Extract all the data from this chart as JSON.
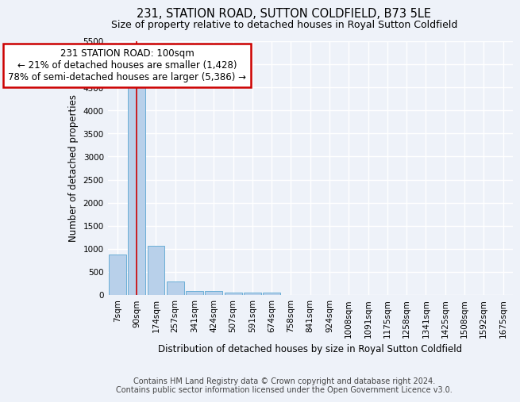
{
  "title": "231, STATION ROAD, SUTTON COLDFIELD, B73 5LE",
  "subtitle": "Size of property relative to detached houses in Royal Sutton Coldfield",
  "xlabel": "Distribution of detached houses by size in Royal Sutton Coldfield",
  "ylabel": "Number of detached properties",
  "footer1": "Contains HM Land Registry data © Crown copyright and database right 2024.",
  "footer2": "Contains public sector information licensed under the Open Government Licence v3.0.",
  "bar_labels": [
    "7sqm",
    "90sqm",
    "174sqm",
    "257sqm",
    "341sqm",
    "424sqm",
    "507sqm",
    "591sqm",
    "674sqm",
    "758sqm",
    "841sqm",
    "924sqm",
    "1008sqm",
    "1091sqm",
    "1175sqm",
    "1258sqm",
    "1341sqm",
    "1425sqm",
    "1508sqm",
    "1592sqm",
    "1675sqm"
  ],
  "bar_values": [
    880,
    4600,
    1070,
    290,
    80,
    80,
    60,
    50,
    50,
    0,
    0,
    0,
    0,
    0,
    0,
    0,
    0,
    0,
    0,
    0,
    0
  ],
  "bar_color": "#b8d0ea",
  "bar_edge_color": "#6aaed6",
  "annotation_line1": "231 STATION ROAD: 100sqm",
  "annotation_line2": "← 21% of detached houses are smaller (1,428)",
  "annotation_line3": "78% of semi-detached houses are larger (5,386) →",
  "red_line_x": 1.0,
  "ylim": [
    0,
    5500
  ],
  "yticks": [
    0,
    500,
    1000,
    1500,
    2000,
    2500,
    3000,
    3500,
    4000,
    4500,
    5000,
    5500
  ],
  "bg_color": "#eef2f9",
  "grid_color": "#ffffff",
  "annotation_box_color": "#ffffff",
  "annotation_border_color": "#cc0000",
  "title_fontsize": 10.5,
  "subtitle_fontsize": 9,
  "axis_label_fontsize": 8.5,
  "tick_fontsize": 7.5,
  "footer_fontsize": 7,
  "annotation_fontsize": 8.5
}
